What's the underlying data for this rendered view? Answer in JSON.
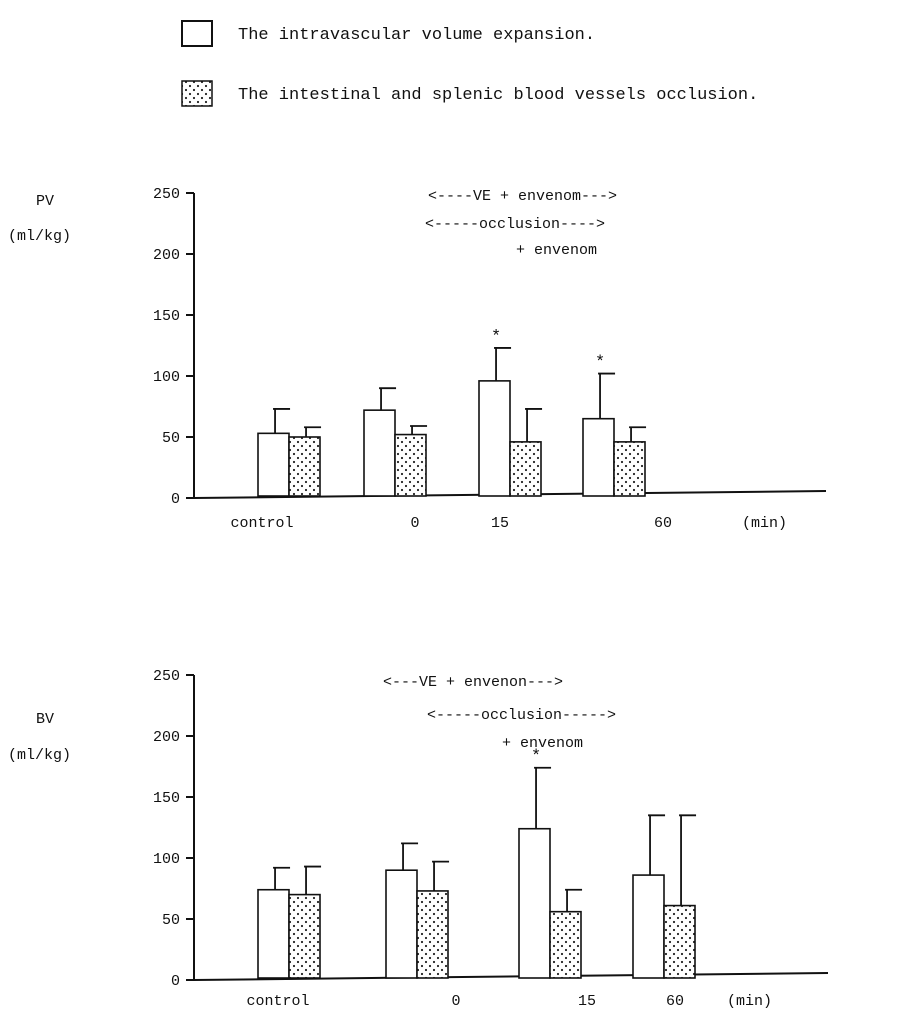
{
  "colors": {
    "ink": "#111111",
    "paper": "#ffffff",
    "dots": "#222222"
  },
  "legend": {
    "items": [
      {
        "label": "The intravascular volume expansion.",
        "pattern": "open"
      },
      {
        "label": "The intestinal and splenic blood vessels occlusion.",
        "pattern": "dotted"
      }
    ]
  },
  "chart_data": [
    {
      "type": "bar",
      "ylabel_line1": "PV",
      "ylabel_line2": "(ml/kg)",
      "ylim": [
        0,
        250
      ],
      "yticks": [
        0,
        50,
        100,
        150,
        200,
        250
      ],
      "categories": [
        "control",
        "0",
        "15",
        "60"
      ],
      "x_unit": "(min)",
      "annotations": [
        "<----VE + envenom--->",
        "<-----occlusion---->",
        "+ envenom"
      ],
      "series": [
        {
          "pattern": "open",
          "values": [
            53,
            72,
            96,
            65
          ],
          "errors": [
            20,
            18,
            27,
            37
          ],
          "significance": [
            "",
            "",
            "*",
            "*"
          ]
        },
        {
          "pattern": "dotted",
          "values": [
            50,
            52,
            46,
            46
          ],
          "errors": [
            8,
            7,
            27,
            12
          ],
          "significance": [
            "",
            "",
            "",
            ""
          ]
        }
      ]
    },
    {
      "type": "bar",
      "ylabel_line1": "BV",
      "ylabel_line2": "(ml/kg)",
      "ylim": [
        0,
        250
      ],
      "yticks": [
        0,
        50,
        100,
        150,
        200,
        250
      ],
      "categories": [
        "control",
        "0",
        "15",
        "60"
      ],
      "x_unit": "(min)",
      "annotations": [
        "<---VE + envenon--->",
        "<-----occlusion----->",
        "+ envenom"
      ],
      "series": [
        {
          "pattern": "open",
          "values": [
            74,
            90,
            124,
            86
          ],
          "errors": [
            18,
            22,
            50,
            49
          ],
          "significance": [
            "",
            "",
            "*",
            ""
          ]
        },
        {
          "pattern": "dotted",
          "values": [
            70,
            73,
            56,
            61
          ],
          "errors": [
            23,
            24,
            18,
            74
          ],
          "significance": [
            "",
            "",
            "",
            ""
          ]
        }
      ]
    }
  ]
}
